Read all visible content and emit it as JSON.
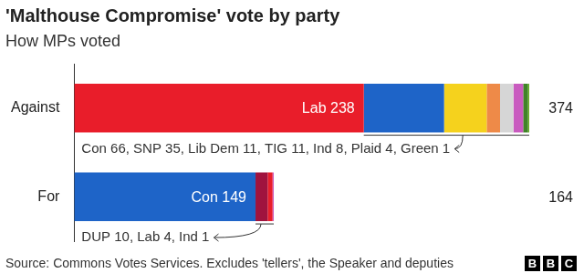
{
  "chart_data": {
    "type": "bar",
    "title": "'Malthouse Compromise' vote by party",
    "subtitle": "How MPs voted",
    "source": "Source: Commons Votes Services. Excludes 'tellers', the Speaker and deputies",
    "logo": "BBC",
    "orientation": "horizontal",
    "stacked": true,
    "grid": false,
    "tick_labels": "y",
    "categories": [
      "Against",
      "For"
    ],
    "xlim": [
      0,
      374
    ],
    "totals": [
      374,
      164
    ],
    "series": [
      {
        "name": "Lab",
        "color": "#e91d2a",
        "values": [
          238,
          null
        ],
        "value_labels": [
          "Lab 238",
          null
        ]
      },
      {
        "name": "Con",
        "color": "#1e64c8",
        "values": [
          66,
          null
        ]
      },
      {
        "name": "SNP",
        "color": "#f5d21d",
        "values": [
          35,
          null
        ]
      },
      {
        "name": "Lib Dem",
        "color": "#ee8a48",
        "values": [
          11,
          null
        ]
      },
      {
        "name": "TIG",
        "color": "#d6d6d6",
        "values": [
          11,
          null
        ]
      },
      {
        "name": "Ind",
        "color": "#c95bbf",
        "values": [
          8,
          null
        ]
      },
      {
        "name": "Plaid",
        "color": "#3f8428",
        "values": [
          4,
          null
        ]
      },
      {
        "name": "Green",
        "color": "#6ab023",
        "values": [
          1,
          null
        ]
      },
      {
        "name": "Con",
        "color": "#1e64c8",
        "values": [
          null,
          149
        ],
        "value_labels": [
          null,
          "Con 149"
        ]
      },
      {
        "name": "DUP",
        "color": "#a0133e",
        "values": [
          null,
          10
        ]
      },
      {
        "name": "Lab",
        "color": "#e91d2a",
        "values": [
          null,
          4
        ]
      },
      {
        "name": "Ind",
        "color": "#c95bbf",
        "values": [
          null,
          1
        ]
      }
    ],
    "annotations": [
      {
        "category": "Against",
        "text": "Con 66, SNP 35, Lib Dem 11, TIG 11, Ind 8, Plaid 4, Green 1"
      },
      {
        "category": "For",
        "text": "DUP 10, Lab 4, Ind 1"
      }
    ]
  }
}
